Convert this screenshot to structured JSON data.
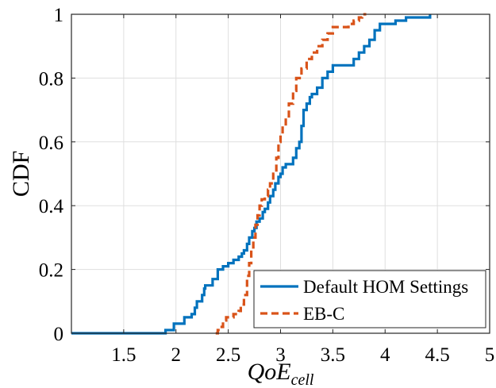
{
  "chart_data": {
    "type": "line",
    "xlabel": "QoE",
    "xlabel_subscript": "cell",
    "ylabel": "CDF",
    "xlim": [
      1,
      5
    ],
    "ylim": [
      0,
      1
    ],
    "xticks": [
      1.5,
      2,
      2.5,
      3,
      3.5,
      4,
      4.5,
      5
    ],
    "yticks": [
      0,
      0.2,
      0.4,
      0.6,
      0.8,
      1
    ],
    "xtick_labels": [
      "1.5",
      "2",
      "2.5",
      "3",
      "3.5",
      "4",
      "4.5",
      "5"
    ],
    "ytick_labels": [
      "0",
      "0.2",
      "0.4",
      "0.6",
      "0.8",
      "1"
    ],
    "grid": true,
    "legend_position": "bottom-right",
    "series": [
      {
        "name": "Default HOM Settings",
        "color": "#0072BD",
        "style": "solid",
        "x": [
          1,
          1.9,
          1.9,
          1.98,
          1.98,
          2.08,
          2.08,
          2.15,
          2.18,
          2.2,
          2.25,
          2.27,
          2.28,
          2.35,
          2.35,
          2.4,
          2.45,
          2.5,
          2.52,
          2.55,
          2.6,
          2.63,
          2.65,
          2.68,
          2.7,
          2.73,
          2.75,
          2.77,
          2.8,
          2.83,
          2.85,
          2.88,
          2.9,
          2.93,
          2.95,
          2.98,
          3.0,
          3.02,
          3.05,
          3.1,
          3.12,
          3.15,
          3.18,
          3.2,
          3.22,
          3.25,
          3.28,
          3.3,
          3.35,
          3.4,
          3.45,
          3.5,
          3.55,
          3.65,
          3.7,
          3.75,
          3.8,
          3.85,
          3.9,
          3.95,
          4.0,
          4.1,
          4.2,
          4.43,
          4.43
        ],
        "values": [
          0,
          0,
          0.01,
          0.01,
          0.03,
          0.03,
          0.05,
          0.06,
          0.08,
          0.1,
          0.12,
          0.14,
          0.15,
          0.15,
          0.17,
          0.2,
          0.21,
          0.22,
          0.22,
          0.23,
          0.24,
          0.25,
          0.26,
          0.28,
          0.3,
          0.32,
          0.33,
          0.35,
          0.36,
          0.38,
          0.39,
          0.41,
          0.43,
          0.45,
          0.47,
          0.49,
          0.5,
          0.52,
          0.53,
          0.53,
          0.55,
          0.58,
          0.6,
          0.65,
          0.7,
          0.72,
          0.74,
          0.75,
          0.77,
          0.8,
          0.82,
          0.84,
          0.84,
          0.84,
          0.86,
          0.88,
          0.9,
          0.92,
          0.95,
          0.97,
          0.97,
          0.98,
          0.99,
          0.99,
          1.0
        ]
      },
      {
        "name": "EB-C",
        "color": "#D95319",
        "style": "dashed",
        "x": [
          2.38,
          2.4,
          2.42,
          2.45,
          2.48,
          2.5,
          2.55,
          2.6,
          2.62,
          2.65,
          2.68,
          2.7,
          2.72,
          2.74,
          2.76,
          2.78,
          2.8,
          2.82,
          2.85,
          2.88,
          2.9,
          2.93,
          2.96,
          2.98,
          3.0,
          3.02,
          3.05,
          3.08,
          3.12,
          3.15,
          3.2,
          3.25,
          3.3,
          3.35,
          3.4,
          3.45,
          3.5,
          3.55,
          3.6,
          3.65,
          3.7,
          3.75,
          3.78,
          3.82
        ],
        "values": [
          0,
          0.01,
          0.02,
          0.04,
          0.05,
          0.05,
          0.06,
          0.07,
          0.09,
          0.12,
          0.18,
          0.22,
          0.26,
          0.3,
          0.34,
          0.37,
          0.4,
          0.42,
          0.43,
          0.45,
          0.47,
          0.5,
          0.55,
          0.6,
          0.63,
          0.65,
          0.68,
          0.72,
          0.76,
          0.8,
          0.83,
          0.86,
          0.88,
          0.9,
          0.92,
          0.94,
          0.96,
          0.96,
          0.96,
          0.97,
          0.98,
          0.99,
          1.0,
          1.0
        ]
      }
    ]
  }
}
